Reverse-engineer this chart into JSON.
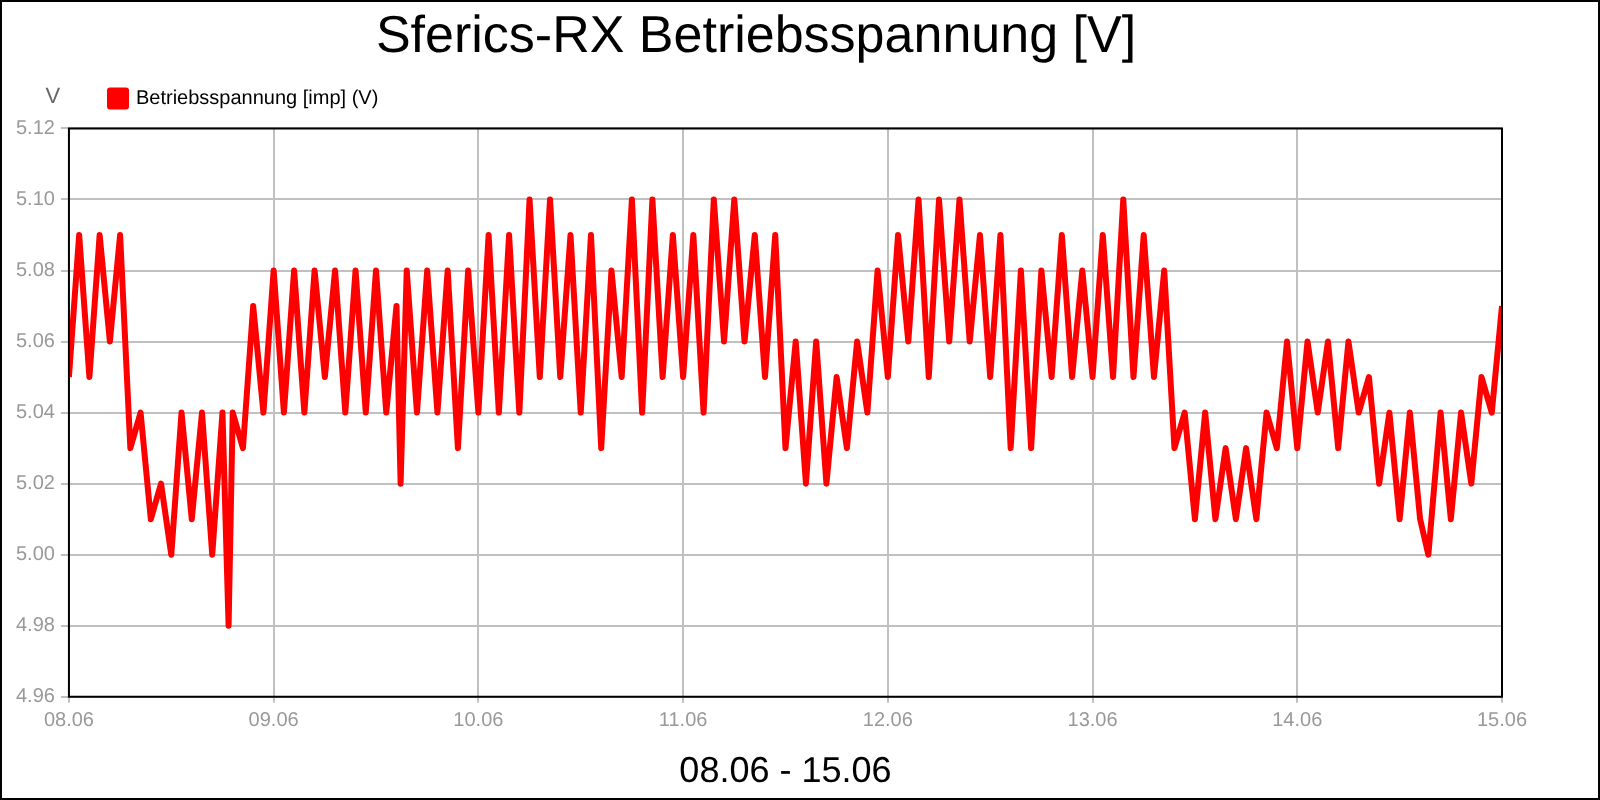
{
  "chart_data": {
    "type": "line",
    "title": "Sferics-RX Betriebsspannung [V]",
    "xlabel": "08.06 - 15.06",
    "ylabel": "V",
    "x": [
      "--06-08T00:00",
      "--06-08T01:12",
      "--06-08T02:24",
      "--06-08T03:36",
      "--06-08T04:48",
      "--06-08T06:00",
      "--06-08T07:12",
      "--06-08T08:24",
      "--06-08T09:36",
      "--06-08T10:48",
      "--06-08T12:00",
      "--06-08T13:12",
      "--06-08T14:24",
      "--06-08T15:36",
      "--06-08T16:48",
      "--06-08T18:00",
      "--06-08T18:43",
      "--06-08T19:12",
      "--06-08T20:24",
      "--06-08T21:36",
      "--06-08T22:48",
      "--06-09T00:00",
      "--06-09T01:12",
      "--06-09T02:24",
      "--06-09T03:36",
      "--06-09T04:48",
      "--06-09T06:00",
      "--06-09T07:12",
      "--06-09T08:24",
      "--06-09T09:36",
      "--06-09T10:48",
      "--06-09T12:00",
      "--06-09T13:12",
      "--06-09T14:24",
      "--06-09T14:53",
      "--06-09T15:36",
      "--06-09T16:48",
      "--06-09T18:00",
      "--06-09T19:12",
      "--06-09T20:24",
      "--06-09T21:36",
      "--06-09T22:48",
      "--06-10T00:00",
      "--06-10T01:12",
      "--06-10T02:24",
      "--06-10T03:36",
      "--06-10T04:48",
      "--06-10T06:00",
      "--06-10T07:12",
      "--06-10T08:24",
      "--06-10T09:36",
      "--06-10T10:48",
      "--06-10T12:00",
      "--06-10T13:12",
      "--06-10T14:24",
      "--06-10T15:36",
      "--06-10T16:48",
      "--06-10T18:00",
      "--06-10T19:12",
      "--06-10T20:24",
      "--06-10T21:36",
      "--06-10T22:48",
      "--06-11T00:00",
      "--06-11T01:12",
      "--06-11T02:24",
      "--06-11T03:36",
      "--06-11T04:48",
      "--06-11T06:00",
      "--06-11T07:12",
      "--06-11T08:24",
      "--06-11T09:36",
      "--06-11T10:48",
      "--06-11T12:00",
      "--06-11T13:12",
      "--06-11T14:24",
      "--06-11T15:36",
      "--06-11T16:48",
      "--06-11T18:00",
      "--06-11T19:12",
      "--06-11T20:24",
      "--06-11T21:36",
      "--06-11T22:48",
      "--06-12T00:00",
      "--06-12T01:12",
      "--06-12T02:24",
      "--06-12T03:36",
      "--06-12T04:48",
      "--06-12T06:00",
      "--06-12T07:12",
      "--06-12T08:24",
      "--06-12T09:36",
      "--06-12T10:48",
      "--06-12T12:00",
      "--06-12T13:12",
      "--06-12T14:24",
      "--06-12T15:36",
      "--06-12T16:48",
      "--06-12T18:00",
      "--06-12T19:12",
      "--06-12T20:24",
      "--06-12T21:36",
      "--06-12T22:48",
      "--06-13T00:00",
      "--06-13T01:12",
      "--06-13T02:24",
      "--06-13T03:36",
      "--06-13T04:48",
      "--06-13T06:00",
      "--06-13T07:12",
      "--06-13T08:24",
      "--06-13T09:36",
      "--06-13T10:48",
      "--06-13T12:00",
      "--06-13T13:12",
      "--06-13T14:24",
      "--06-13T15:36",
      "--06-13T16:48",
      "--06-13T18:00",
      "--06-13T19:12",
      "--06-13T20:24",
      "--06-13T21:36",
      "--06-13T22:48",
      "--06-14T00:00",
      "--06-14T01:12",
      "--06-14T02:24",
      "--06-14T03:36",
      "--06-14T04:48",
      "--06-14T06:00",
      "--06-14T07:12",
      "--06-14T08:24",
      "--06-14T09:36",
      "--06-14T10:48",
      "--06-14T12:00",
      "--06-14T13:12",
      "--06-14T14:24",
      "--06-14T15:22",
      "--06-14T16:48",
      "--06-14T18:00",
      "--06-14T19:12",
      "--06-14T20:24",
      "--06-14T21:36",
      "--06-14T22:48",
      "--06-15T00:00"
    ],
    "series": [
      {
        "name": "Betriebsspannung [imp] (V)",
        "color": "#ff0000",
        "values": [
          5.05,
          5.09,
          5.05,
          5.09,
          5.06,
          5.09,
          5.03,
          5.04,
          5.01,
          5.02,
          5.0,
          5.04,
          5.01,
          5.04,
          5.0,
          5.04,
          4.98,
          5.04,
          5.03,
          5.07,
          5.04,
          5.08,
          5.04,
          5.08,
          5.04,
          5.08,
          5.05,
          5.08,
          5.04,
          5.08,
          5.04,
          5.08,
          5.04,
          5.07,
          5.02,
          5.08,
          5.04,
          5.08,
          5.04,
          5.08,
          5.03,
          5.08,
          5.04,
          5.09,
          5.04,
          5.09,
          5.04,
          5.1,
          5.05,
          5.1,
          5.05,
          5.09,
          5.04,
          5.09,
          5.03,
          5.08,
          5.05,
          5.1,
          5.04,
          5.1,
          5.05,
          5.09,
          5.05,
          5.09,
          5.04,
          5.1,
          5.06,
          5.1,
          5.06,
          5.09,
          5.05,
          5.09,
          5.03,
          5.06,
          5.02,
          5.06,
          5.02,
          5.05,
          5.03,
          5.06,
          5.04,
          5.08,
          5.05,
          5.09,
          5.06,
          5.1,
          5.05,
          5.1,
          5.06,
          5.1,
          5.06,
          5.09,
          5.05,
          5.09,
          5.03,
          5.08,
          5.03,
          5.08,
          5.05,
          5.09,
          5.05,
          5.08,
          5.05,
          5.09,
          5.05,
          5.1,
          5.05,
          5.09,
          5.05,
          5.08,
          5.03,
          5.04,
          5.01,
          5.04,
          5.01,
          5.03,
          5.01,
          5.03,
          5.01,
          5.04,
          5.03,
          5.06,
          5.03,
          5.06,
          5.04,
          5.06,
          5.03,
          5.06,
          5.04,
          5.05,
          5.02,
          5.04,
          5.01,
          5.04,
          5.01,
          5.0,
          5.04,
          5.01,
          5.04,
          5.02,
          5.05,
          5.04,
          5.07
        ]
      }
    ],
    "xlim": [
      "--06-08",
      "--06-15"
    ],
    "xticks": [
      {
        "value": "--06-08",
        "label": "08.06"
      },
      {
        "value": "--06-09",
        "label": "09.06"
      },
      {
        "value": "--06-10",
        "label": "10.06"
      },
      {
        "value": "--06-11",
        "label": "11.06"
      },
      {
        "value": "--06-12",
        "label": "12.06"
      },
      {
        "value": "--06-13",
        "label": "13.06"
      },
      {
        "value": "--06-14",
        "label": "14.06"
      },
      {
        "value": "--06-15",
        "label": "15.06"
      }
    ],
    "ylim": [
      4.96,
      5.12
    ],
    "yticks": [
      4.96,
      4.98,
      {
        "value": 5,
        "label": "5.00"
      },
      5.02,
      5.04,
      5.06,
      5.08,
      {
        "value": 5.1,
        "label": "5.10"
      },
      5.12
    ],
    "grid": true,
    "legend": "top left",
    "marker": "none",
    "line_style": "solid"
  }
}
